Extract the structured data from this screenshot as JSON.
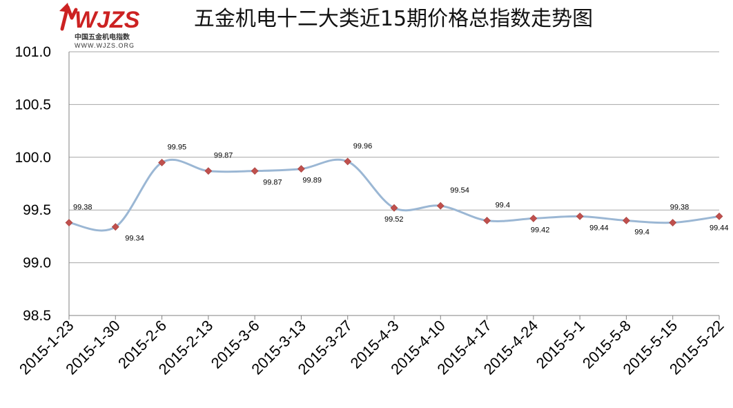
{
  "logo": {
    "brand": "WJZS",
    "subtitle": "中国五金机电指数",
    "url": "WWW.WJZS.ORG",
    "brand_color": "#cc2222"
  },
  "chart_data": {
    "type": "line",
    "title": "五金机电十二大类近15期价格总指数走势图",
    "categories": [
      "2015-1-23",
      "2015-1-30",
      "2015-2-6",
      "2015-2-13",
      "2015-3-6",
      "2015-3-13",
      "2015-3-27",
      "2015-4-3",
      "2015-4-10",
      "2015-4-17",
      "2015-4-24",
      "2015-5-1",
      "2015-5-8",
      "2015-5-15",
      "2015-5-22"
    ],
    "series": [
      {
        "values": [
          99.38,
          99.34,
          99.95,
          99.87,
          99.87,
          99.89,
          99.96,
          99.52,
          99.54,
          99.4,
          99.42,
          99.44,
          99.4,
          99.38,
          99.44
        ],
        "data_labels": [
          "99.38",
          "99.34",
          "99.95",
          "99.87",
          "99.87",
          "99.89",
          "99.96",
          "99.52",
          "99.54",
          "99.4",
          "99.42",
          "99.44",
          "99.4",
          "99.38",
          "99.44"
        ],
        "line_color": "#9bb7d4",
        "marker_color": "#c0504d",
        "marker": "diamond",
        "smooth": true
      }
    ],
    "ylim": [
      98.5,
      101.0
    ],
    "yticks": [
      "98.5",
      "99.0",
      "99.5",
      "100.0",
      "100.5",
      "101.0"
    ],
    "xlabel": "",
    "ylabel": "",
    "grid": "horizontal",
    "legend": "none"
  }
}
